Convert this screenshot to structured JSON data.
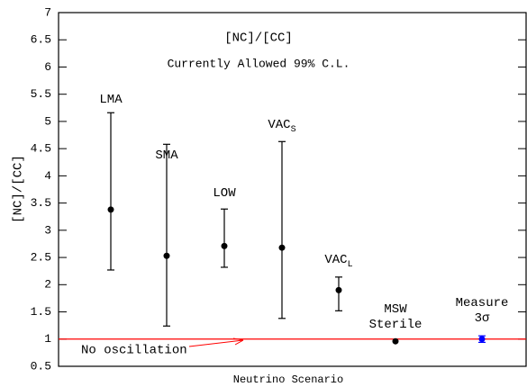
{
  "chart_data": {
    "type": "errorbar",
    "title": "[NC]/[CC]",
    "subtitle": "Currently Allowed 99% C.L.",
    "ylabel": "[NC]/[CC]",
    "xlabel": "Neutrino Scenario",
    "ylim": [
      0.5,
      7
    ],
    "yticks": [
      0.5,
      1,
      1.5,
      2,
      2.5,
      3,
      3.5,
      4,
      4.5,
      5,
      5.5,
      6,
      6.5,
      7
    ],
    "categories": [
      [
        "LMA"
      ],
      [
        "SMA"
      ],
      [
        "LOW"
      ],
      [
        "VAC"
      ],
      [
        "VAC"
      ],
      [
        "MSW",
        "Sterile"
      ],
      [
        "Measure",
        "3σ"
      ]
    ],
    "label_subscripts": [
      null,
      null,
      null,
      "S",
      "L",
      null,
      null
    ],
    "values": [
      3.38,
      2.53,
      2.71,
      2.68,
      1.9,
      0.96,
      1.0
    ],
    "low": [
      2.27,
      1.24,
      2.32,
      1.38,
      1.52,
      null,
      0.94
    ],
    "high": [
      5.16,
      4.58,
      3.39,
      4.63,
      2.14,
      null,
      1.06
    ],
    "colors": [
      "#000000",
      "#000000",
      "#000000",
      "#000000",
      "#000000",
      "#000000",
      "#0000ff"
    ],
    "reference_line": {
      "value": 1,
      "label": "No oscillation",
      "color": "#ff0000"
    }
  }
}
